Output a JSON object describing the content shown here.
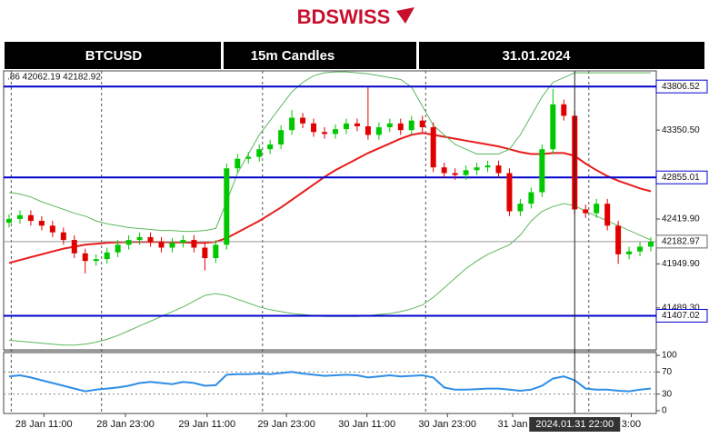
{
  "header": {
    "logo": "BDSWISS"
  },
  "chart_data": [
    {
      "type": "candlestick",
      "symbol": "BTCUSD",
      "timeframe": "15m Candles",
      "date": "31.01.2024",
      "info": ".86 42062.19 42182.92",
      "up_color": "#00c800",
      "down_color": "#e00000",
      "open": [
        42380,
        42420,
        42460,
        42400,
        42350,
        42280,
        42200,
        42060,
        41980,
        42000,
        42070,
        42150,
        42200,
        42230,
        42180,
        42120,
        42170,
        42200,
        42120,
        42010,
        42150,
        42950,
        43050,
        43070,
        43150,
        43200,
        43350,
        43480,
        43420,
        43330,
        43310,
        43360,
        43420,
        43390,
        43300,
        43380,
        43420,
        43350,
        43450,
        43380,
        42960,
        42900,
        42880,
        42930,
        42960,
        42980,
        42900,
        42500,
        42580,
        42700,
        43150,
        43620,
        43500,
        42520,
        42480,
        42580,
        42350,
        42050,
        42080,
        42130
      ],
      "high": [
        42470,
        42510,
        42510,
        42450,
        42400,
        42330,
        42250,
        42110,
        42050,
        42120,
        42200,
        42250,
        42280,
        42280,
        42230,
        42220,
        42250,
        42250,
        42170,
        42200,
        43000,
        43100,
        43120,
        43200,
        43250,
        43400,
        43560,
        43530,
        43470,
        43380,
        43410,
        43470,
        43470,
        43800,
        43430,
        43470,
        43470,
        43500,
        43500,
        43430,
        43010,
        42950,
        42980,
        43010,
        43030,
        43030,
        42950,
        42630,
        42750,
        43200,
        43780,
        43670,
        43550,
        42570,
        42630,
        42630,
        42400,
        42130,
        42180,
        42230
      ],
      "low": [
        42330,
        42370,
        42350,
        42300,
        42230,
        42150,
        42010,
        41850,
        41930,
        41950,
        42020,
        42100,
        42150,
        42130,
        42070,
        42070,
        42120,
        42070,
        41880,
        41960,
        42100,
        42900,
        43000,
        43020,
        43100,
        43150,
        43300,
        43370,
        43280,
        43260,
        43260,
        43310,
        43340,
        43250,
        43250,
        43330,
        43300,
        43300,
        43330,
        42910,
        42850,
        42830,
        42830,
        42880,
        42910,
        42850,
        42450,
        42450,
        42530,
        42650,
        43100,
        43450,
        42470,
        42430,
        42430,
        42300,
        41950,
        42000,
        42030,
        42080
      ],
      "close": [
        42420,
        42460,
        42400,
        42350,
        42280,
        42200,
        42060,
        41980,
        42000,
        42070,
        42150,
        42200,
        42230,
        42180,
        42120,
        42170,
        42200,
        42120,
        42010,
        42150,
        42950,
        43050,
        43070,
        43150,
        43200,
        43350,
        43480,
        43420,
        43330,
        43310,
        43360,
        43420,
        43390,
        43300,
        43380,
        43420,
        43350,
        43450,
        43380,
        42960,
        42900,
        42880,
        42930,
        42960,
        42980,
        42900,
        42500,
        42580,
        42700,
        43150,
        43620,
        43500,
        42520,
        42480,
        42580,
        42350,
        42050,
        42080,
        42130,
        42183
      ],
      "series": [
        {
          "color": "#e81c1c",
          "values": [
            41960,
            41990,
            42020,
            42050,
            42080,
            42110,
            42130,
            42150,
            42160,
            42170,
            42175,
            42180,
            42180,
            42180,
            42180,
            42175,
            42175,
            42170,
            42170,
            42180,
            42220,
            42280,
            42340,
            42400,
            42470,
            42540,
            42620,
            42700,
            42780,
            42860,
            42930,
            42990,
            43050,
            43110,
            43160,
            43210,
            43260,
            43300,
            43320,
            43300,
            43280,
            43260,
            43240,
            43220,
            43200,
            43180,
            43150,
            43120,
            43100,
            43100,
            43110,
            43110,
            43080,
            43000,
            42930,
            42870,
            42820,
            42780,
            42740,
            42710
          ]
        },
        {
          "color": "#5cb85c",
          "values": [
            42700,
            42680,
            42650,
            42600,
            42560,
            42520,
            42480,
            42450,
            42400,
            42370,
            42350,
            42330,
            42320,
            42310,
            42300,
            42300,
            42290,
            42290,
            42300,
            42320,
            42600,
            42900,
            43100,
            43300,
            43450,
            43600,
            43750,
            43850,
            43920,
            43950,
            43960,
            43960,
            43950,
            43940,
            43920,
            43900,
            43880,
            43800,
            43600,
            43400,
            43300,
            43200,
            43150,
            43100,
            43100,
            43100,
            43150,
            43300,
            43500,
            43700,
            43850,
            43900,
            43950,
            43950,
            43950,
            43950,
            43950,
            43950,
            43950,
            43950
          ]
        },
        {
          "color": "#5cb85c",
          "values": [
            41150,
            41140,
            41130,
            41120,
            41110,
            41100,
            41100,
            41110,
            41130,
            41160,
            41200,
            41250,
            41300,
            41350,
            41400,
            41450,
            41500,
            41560,
            41620,
            41640,
            41620,
            41580,
            41540,
            41500,
            41470,
            41450,
            41430,
            41420,
            41410,
            41400,
            41400,
            41400,
            41400,
            41410,
            41420,
            41430,
            41450,
            41480,
            41520,
            41600,
            41700,
            41800,
            41900,
            41980,
            42050,
            42100,
            42150,
            42250,
            42400,
            42500,
            42550,
            42580,
            42560,
            42500,
            42450,
            42400,
            42350,
            42300,
            42250,
            42200
          ]
        }
      ],
      "levels": [
        {
          "value": 43806.52,
          "label": "43806.52",
          "color": "#0000cc"
        },
        {
          "value": 42855.01,
          "label": "42855.01",
          "color": "#0000cc"
        },
        {
          "value": 41407.02,
          "label": "41407.02",
          "color": "#0000cc"
        }
      ],
      "last": {
        "value": 42182.97,
        "label": "42182.97",
        "color": "#999999"
      },
      "ylim": [
        41050,
        43970
      ],
      "yticks": [
        {
          "value": 43350.5,
          "label": "43350.50"
        },
        {
          "value": 42419.9,
          "label": "42419.90"
        },
        {
          "value": 41949.9,
          "label": "41949.90"
        },
        {
          "value": 41489.3,
          "label": "41489.30"
        }
      ],
      "xlim": [
        -0.5,
        59.5
      ],
      "xticks": [
        {
          "value": 3.2,
          "label": "28 Jan 11:00"
        },
        {
          "value": 10.7,
          "label": "28 Jan 23:00"
        },
        {
          "value": 18.2,
          "label": "29 Jan 11:00"
        },
        {
          "value": 25.5,
          "label": "29 Jan 23:00"
        },
        {
          "value": 32.9,
          "label": "30 Jan 11:00"
        },
        {
          "value": 40.3,
          "label": "30 Jan 23:00"
        },
        {
          "value": 46.3,
          "label": "31 Jan"
        },
        {
          "value": 57.2,
          "label": "3:00"
        }
      ],
      "separators": [
        0.2,
        8.5,
        23.3,
        38.3,
        53.3
      ],
      "cursor": {
        "value": 52,
        "label": "2024.01.31 22:00"
      }
    },
    {
      "type": "line",
      "color": "#2f8ee6",
      "values": [
        62,
        64,
        60,
        55,
        50,
        45,
        40,
        35,
        38,
        40,
        42,
        45,
        50,
        52,
        50,
        48,
        52,
        50,
        45,
        46,
        65,
        66,
        66,
        67,
        66,
        68,
        70,
        67,
        65,
        63,
        64,
        65,
        64,
        60,
        62,
        64,
        62,
        63,
        64,
        60,
        42,
        38,
        38,
        39,
        40,
        40,
        38,
        36,
        38,
        45,
        58,
        62,
        55,
        40,
        38,
        38,
        36,
        35,
        38,
        40
      ],
      "ylim": [
        -5,
        105
      ],
      "yticks": [
        100,
        70,
        30,
        0
      ],
      "levels": [
        70,
        30
      ]
    }
  ]
}
